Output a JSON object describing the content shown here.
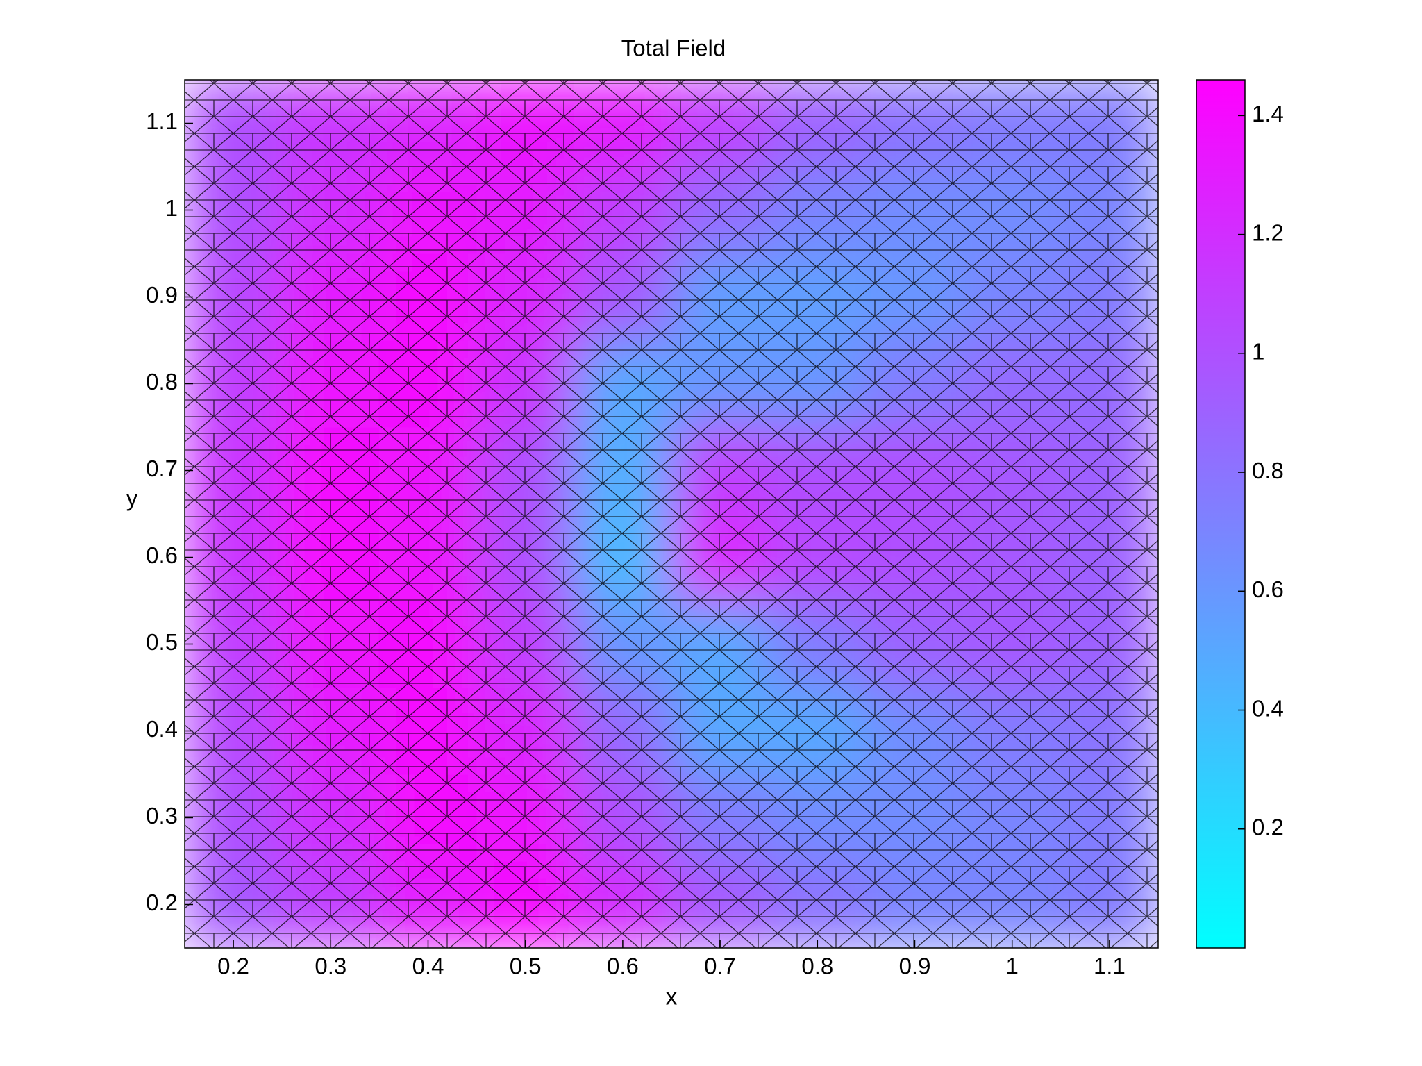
{
  "chart_data": {
    "type": "heatmap",
    "title": "Total Field",
    "x_label": "x",
    "y_label": "y",
    "x": [
      0.2,
      0.3,
      0.4,
      0.5,
      0.6,
      0.7,
      0.8,
      0.9,
      1,
      1.1
    ],
    "y": [
      0.2,
      0.3,
      0.4,
      0.5,
      0.6,
      0.7,
      0.8,
      0.9,
      1,
      1.1
    ],
    "z": [
      [
        0.95,
        1.1,
        1.3,
        1.4,
        1.2,
        0.95,
        0.8,
        0.7,
        0.7,
        0.75
      ],
      [
        1.0,
        1.2,
        1.4,
        1.35,
        1.0,
        0.75,
        0.65,
        0.65,
        0.7,
        0.75
      ],
      [
        1.05,
        1.3,
        1.4,
        1.25,
        0.85,
        0.5,
        0.5,
        0.65,
        0.75,
        0.8
      ],
      [
        1.1,
        1.35,
        1.4,
        1.1,
        0.6,
        0.5,
        0.75,
        0.9,
        0.95,
        0.9
      ],
      [
        1.15,
        1.4,
        1.35,
        1.0,
        0.4,
        1.25,
        1.05,
        1.0,
        0.95,
        0.9
      ],
      [
        1.15,
        1.4,
        1.35,
        1.0,
        0.45,
        1.1,
        1.0,
        1.0,
        0.95,
        0.9
      ],
      [
        1.1,
        1.35,
        1.4,
        1.15,
        0.5,
        0.6,
        0.6,
        0.75,
        0.85,
        0.85
      ],
      [
        1.05,
        1.3,
        1.4,
        1.25,
        0.95,
        0.55,
        0.55,
        0.6,
        0.7,
        0.75
      ],
      [
        1.0,
        1.2,
        1.35,
        1.3,
        1.1,
        0.85,
        0.7,
        0.65,
        0.65,
        0.7
      ],
      [
        1.0,
        1.15,
        1.25,
        1.35,
        1.3,
        1.1,
        0.9,
        0.8,
        0.75,
        0.75
      ]
    ],
    "xlim": [
      0.15,
      1.15
    ],
    "ylim": [
      0.15,
      1.15
    ],
    "xticks": [
      0.2,
      0.3,
      0.4,
      0.5,
      0.6,
      0.7,
      0.8,
      0.9,
      1,
      1.1
    ],
    "yticks": [
      0.2,
      0.3,
      0.4,
      0.5,
      0.6,
      0.7,
      0.8,
      0.9,
      1,
      1.1
    ],
    "clim": [
      0,
      1.46
    ],
    "cticks": [
      0.2,
      0.4,
      0.6,
      0.8,
      1,
      1.2,
      1.4
    ],
    "colormap": [
      "#00ffff",
      "#ff00ff"
    ]
  }
}
